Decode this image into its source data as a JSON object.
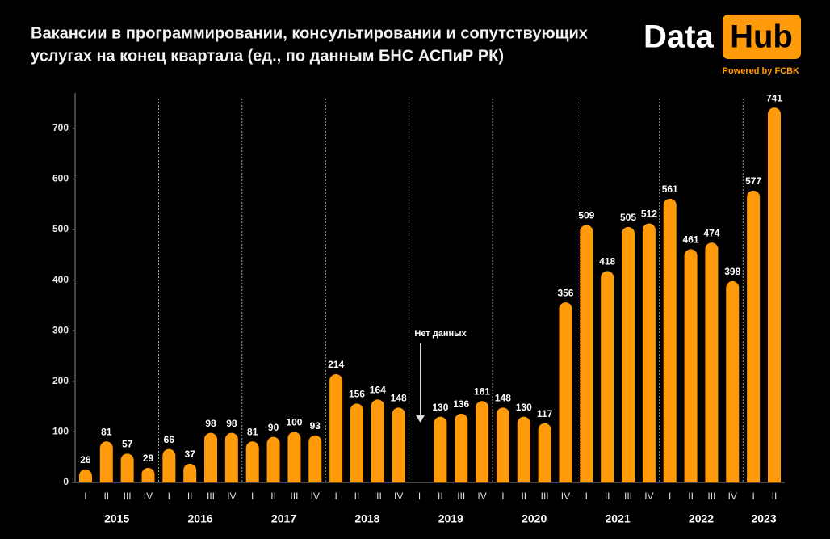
{
  "chart_data": {
    "type": "bar",
    "title": [
      "Вакансии в программировании, консультировании и сопутствующих",
      "услугах на конец квартала (ед., по данным БНС АСПиР РК)"
    ],
    "logo": {
      "left": "Data",
      "right": "Hub",
      "tagline": "Powered by FCBK"
    },
    "annotation": "Нет данных",
    "color": "#ff9a0a",
    "ylim": [
      0,
      770
    ],
    "yticks": [
      0,
      100,
      200,
      300,
      400,
      500,
      600,
      700
    ],
    "groups": [
      {
        "label": "2015",
        "categories": [
          "I",
          "II",
          "III",
          "IV"
        ],
        "values": [
          26,
          81,
          57,
          29
        ]
      },
      {
        "label": "2016",
        "categories": [
          "I",
          "II",
          "III",
          "IV"
        ],
        "values": [
          66,
          37,
          98,
          98
        ]
      },
      {
        "label": "2017",
        "categories": [
          "I",
          "II",
          "III",
          "IV"
        ],
        "values": [
          81,
          90,
          100,
          93
        ]
      },
      {
        "label": "2018",
        "categories": [
          "I",
          "II",
          "III",
          "IV"
        ],
        "values": [
          214,
          156,
          164,
          148
        ]
      },
      {
        "label": "2019",
        "categories": [
          "I",
          "II",
          "III",
          "IV"
        ],
        "values": [
          null,
          130,
          136,
          161
        ]
      },
      {
        "label": "2020",
        "categories": [
          "I",
          "II",
          "III",
          "IV"
        ],
        "values": [
          148,
          130,
          117,
          356
        ]
      },
      {
        "label": "2021",
        "categories": [
          "I",
          "II",
          "III",
          "IV"
        ],
        "values": [
          509,
          418,
          505,
          512
        ]
      },
      {
        "label": "2022",
        "categories": [
          "I",
          "II",
          "III",
          "IV"
        ],
        "values": [
          561,
          461,
          474,
          398
        ]
      },
      {
        "label": "2023",
        "categories": [
          "I",
          "II"
        ],
        "values": [
          577,
          741
        ]
      }
    ]
  }
}
